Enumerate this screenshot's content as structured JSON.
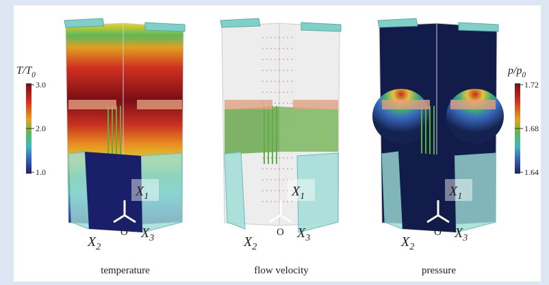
{
  "colorbars": [
    {
      "symbol": "T/T",
      "symbol_sub": "0",
      "ticks": [
        "3.0",
        "2.0",
        "1.0"
      ]
    },
    {
      "symbol": "p/p",
      "symbol_sub": "0",
      "ticks": [
        "1.72",
        "1.68",
        "1.64"
      ]
    }
  ],
  "panels": [
    {
      "caption": "temperature",
      "axes": [
        {
          "main": "X",
          "sub": "1"
        },
        {
          "main": "X",
          "sub": "2"
        },
        {
          "main": "X",
          "sub": "3"
        }
      ],
      "origin": "O"
    },
    {
      "caption": "flow velocity",
      "axes": [
        {
          "main": "X",
          "sub": "1"
        },
        {
          "main": "X",
          "sub": "2"
        },
        {
          "main": "X",
          "sub": "3"
        }
      ],
      "origin": "O"
    },
    {
      "caption": "pressure",
      "axes": [
        {
          "main": "X",
          "sub": "1"
        },
        {
          "main": "X",
          "sub": "2"
        },
        {
          "main": "X",
          "sub": "3"
        }
      ],
      "origin": "O"
    }
  ]
}
